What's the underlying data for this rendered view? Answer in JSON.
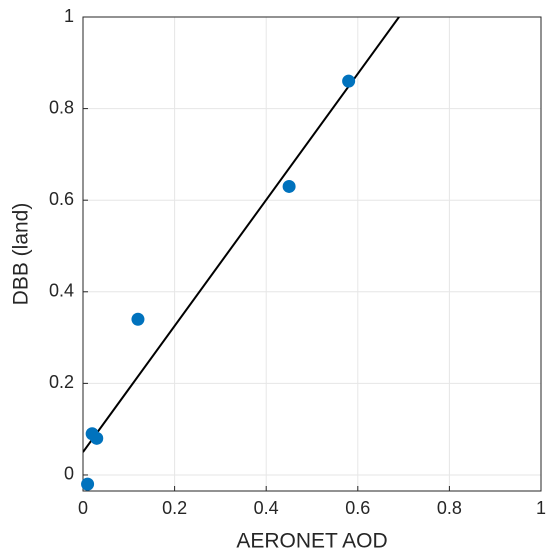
{
  "chart_data": {
    "type": "scatter",
    "xlabel": "AERONET AOD",
    "ylabel": "DBB (land)",
    "xlim": [
      0,
      1
    ],
    "ylim": [
      -0.035,
      1
    ],
    "xticks": [
      0,
      0.2,
      0.4,
      0.6,
      0.8,
      1
    ],
    "yticks": [
      0,
      0.2,
      0.4,
      0.6,
      0.8,
      1
    ],
    "grid": true,
    "series": [
      {
        "color": "#0072bd",
        "x": [
          0.01,
          0.02,
          0.03,
          0.12,
          0.45,
          0.58
        ],
        "y": [
          -0.02,
          0.09,
          0.08,
          0.34,
          0.63,
          0.86
        ]
      }
    ],
    "lines": [
      {
        "color": "#000000",
        "x": [
          0,
          0.69
        ],
        "y": [
          0.05,
          1
        ]
      }
    ]
  }
}
